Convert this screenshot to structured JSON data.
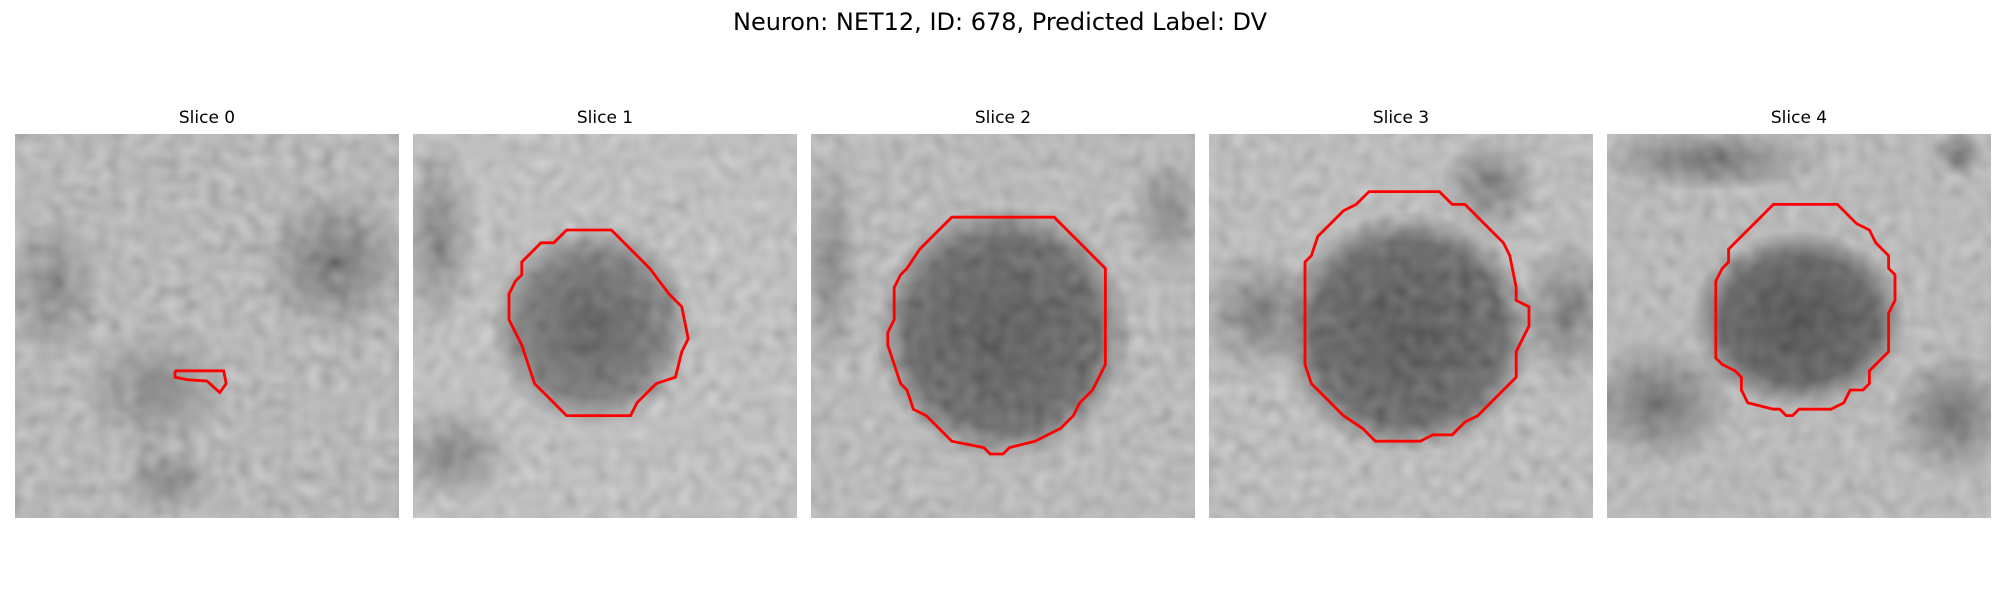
{
  "figure": {
    "title": "Neuron: NET12, ID: 678, Predicted Label: DV",
    "contour_color": "#ff0000"
  },
  "panels": [
    {
      "title": "Slice 0"
    },
    {
      "title": "Slice 1"
    },
    {
      "title": "Slice 2"
    },
    {
      "title": "Slice 3"
    },
    {
      "title": "Slice 4"
    }
  ]
}
